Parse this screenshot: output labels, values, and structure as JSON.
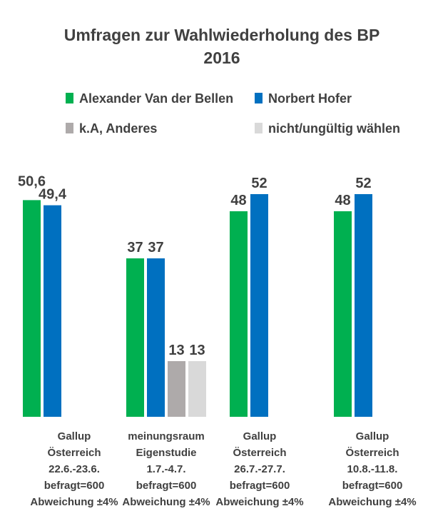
{
  "chart_data": {
    "type": "bar",
    "title": [
      "Umfragen zur Wahlwiederholung des BP",
      "2016"
    ],
    "legend_placement": "top",
    "grid": false,
    "ylim": [
      0,
      60
    ],
    "categories": [
      [
        "Gallup",
        "Österreich",
        "22.6.-23.6.",
        "befragt=600",
        "Abweichung ±4%"
      ],
      [
        "meinungsraum",
        "Eigenstudie",
        "1.7.-4.7.",
        "befragt=600",
        "Abweichung ±4%"
      ],
      [
        "Gallup",
        "Österreich",
        "26.7.-27.7.",
        "befragt=600",
        "Abweichung ±4%"
      ],
      [
        "Gallup",
        "Österreich",
        "10.8.-11.8.",
        "befragt=600",
        "Abweichung ±4%"
      ]
    ],
    "series": [
      {
        "name": "Alexander Van der Bellen",
        "color": "#00b050",
        "values": [
          50.6,
          37,
          48,
          48
        ],
        "labels": [
          "50,6",
          "37",
          "48",
          "48"
        ]
      },
      {
        "name": "Norbert Hofer",
        "color": "#0070c0",
        "values": [
          49.4,
          37,
          52,
          52
        ],
        "labels": [
          "49,4",
          "37",
          "52",
          "52"
        ]
      },
      {
        "name": "k.A, Anderes",
        "color": "#aeaaaa",
        "values": [
          null,
          13,
          null,
          null
        ],
        "labels": [
          "",
          "13",
          "",
          ""
        ]
      },
      {
        "name": "nicht/ungültig wählen",
        "color": "#d9d9d9",
        "values": [
          null,
          13,
          null,
          null
        ],
        "labels": [
          "",
          "13",
          "",
          ""
        ]
      }
    ]
  }
}
